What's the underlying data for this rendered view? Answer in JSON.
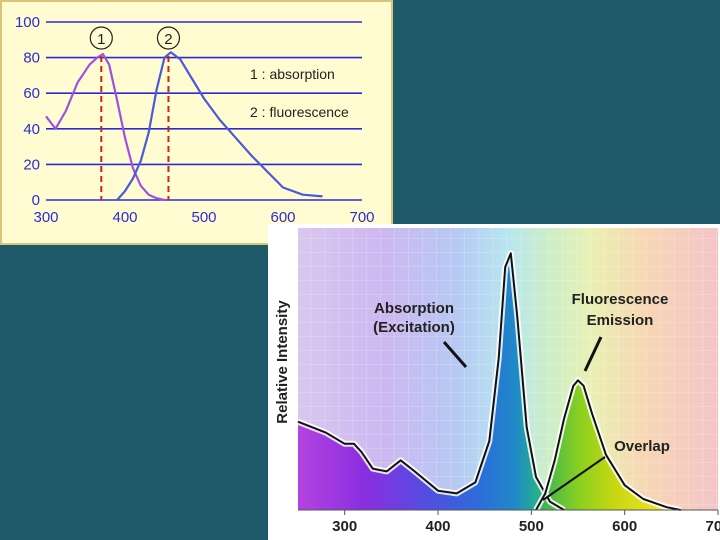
{
  "chart_data": [
    {
      "type": "line",
      "xlim": [
        300,
        700
      ],
      "ylim": [
        0,
        100
      ],
      "x_ticks": [
        "300",
        "400",
        "500",
        "600",
        "700"
      ],
      "y_ticks": [
        "0",
        "20",
        "40",
        "60",
        "80",
        "100"
      ],
      "grid": "horizontal",
      "series": [
        {
          "name": "1 : absorption",
          "marker_label": "1",
          "color": "#a050e0",
          "peak_x": 370,
          "points": [
            [
              300,
              47
            ],
            [
              312,
              40
            ],
            [
              325,
              50
            ],
            [
              340,
              66
            ],
            [
              355,
              76
            ],
            [
              365,
              80
            ],
            [
              372,
              82
            ],
            [
              380,
              76
            ],
            [
              390,
              56
            ],
            [
              400,
              35
            ],
            [
              410,
              18
            ],
            [
              420,
              8
            ],
            [
              430,
              3
            ],
            [
              440,
              1
            ],
            [
              450,
              0
            ]
          ]
        },
        {
          "name": "2 : fluorescence",
          "marker_label": "2",
          "color": "#4a5ad8",
          "peak_x": 455,
          "points": [
            [
              390,
              0
            ],
            [
              400,
              5
            ],
            [
              410,
              12
            ],
            [
              420,
              22
            ],
            [
              430,
              38
            ],
            [
              440,
              62
            ],
            [
              450,
              80
            ],
            [
              458,
              83
            ],
            [
              470,
              79
            ],
            [
              485,
              68
            ],
            [
              500,
              57
            ],
            [
              520,
              45
            ],
            [
              540,
              35
            ],
            [
              560,
              25
            ],
            [
              580,
              16
            ],
            [
              600,
              7
            ],
            [
              625,
              3
            ],
            [
              650,
              2
            ]
          ]
        }
      ],
      "legend": [
        "1 : absorption",
        "2 : fluorescence"
      ],
      "legend_position": "top-right"
    },
    {
      "type": "area",
      "ylabel": "Relative Intensity",
      "xlim": [
        250,
        700
      ],
      "x_ticks": [
        "300",
        "400",
        "500",
        "600",
        "700"
      ],
      "annotations": {
        "absorption_line1": "Absorption",
        "absorption_line2": "(Excitation)",
        "emission_line1": "Fluorescence",
        "emission_line2": "Emission",
        "overlap": "Overlap"
      },
      "series": [
        {
          "name": "Absorption (Excitation)",
          "peak_x": 475,
          "points": [
            [
              250,
              0.32
            ],
            [
              280,
              0.28
            ],
            [
              300,
              0.24
            ],
            [
              310,
              0.24
            ],
            [
              318,
              0.21
            ],
            [
              330,
              0.15
            ],
            [
              345,
              0.14
            ],
            [
              360,
              0.18
            ],
            [
              375,
              0.14
            ],
            [
              400,
              0.07
            ],
            [
              420,
              0.06
            ],
            [
              440,
              0.1
            ],
            [
              455,
              0.25
            ],
            [
              465,
              0.55
            ],
            [
              472,
              0.88
            ],
            [
              478,
              0.93
            ],
            [
              485,
              0.7
            ],
            [
              495,
              0.3
            ],
            [
              505,
              0.12
            ],
            [
              520,
              0.03
            ],
            [
              535,
              0.0
            ]
          ]
        },
        {
          "name": "Fluorescence Emission",
          "peak_x": 550,
          "points": [
            [
              505,
              0.0
            ],
            [
              515,
              0.06
            ],
            [
              525,
              0.18
            ],
            [
              535,
              0.33
            ],
            [
              545,
              0.45
            ],
            [
              550,
              0.47
            ],
            [
              556,
              0.45
            ],
            [
              565,
              0.35
            ],
            [
              580,
              0.2
            ],
            [
              600,
              0.09
            ],
            [
              620,
              0.04
            ],
            [
              645,
              0.01
            ],
            [
              660,
              0.0
            ]
          ]
        }
      ]
    }
  ]
}
